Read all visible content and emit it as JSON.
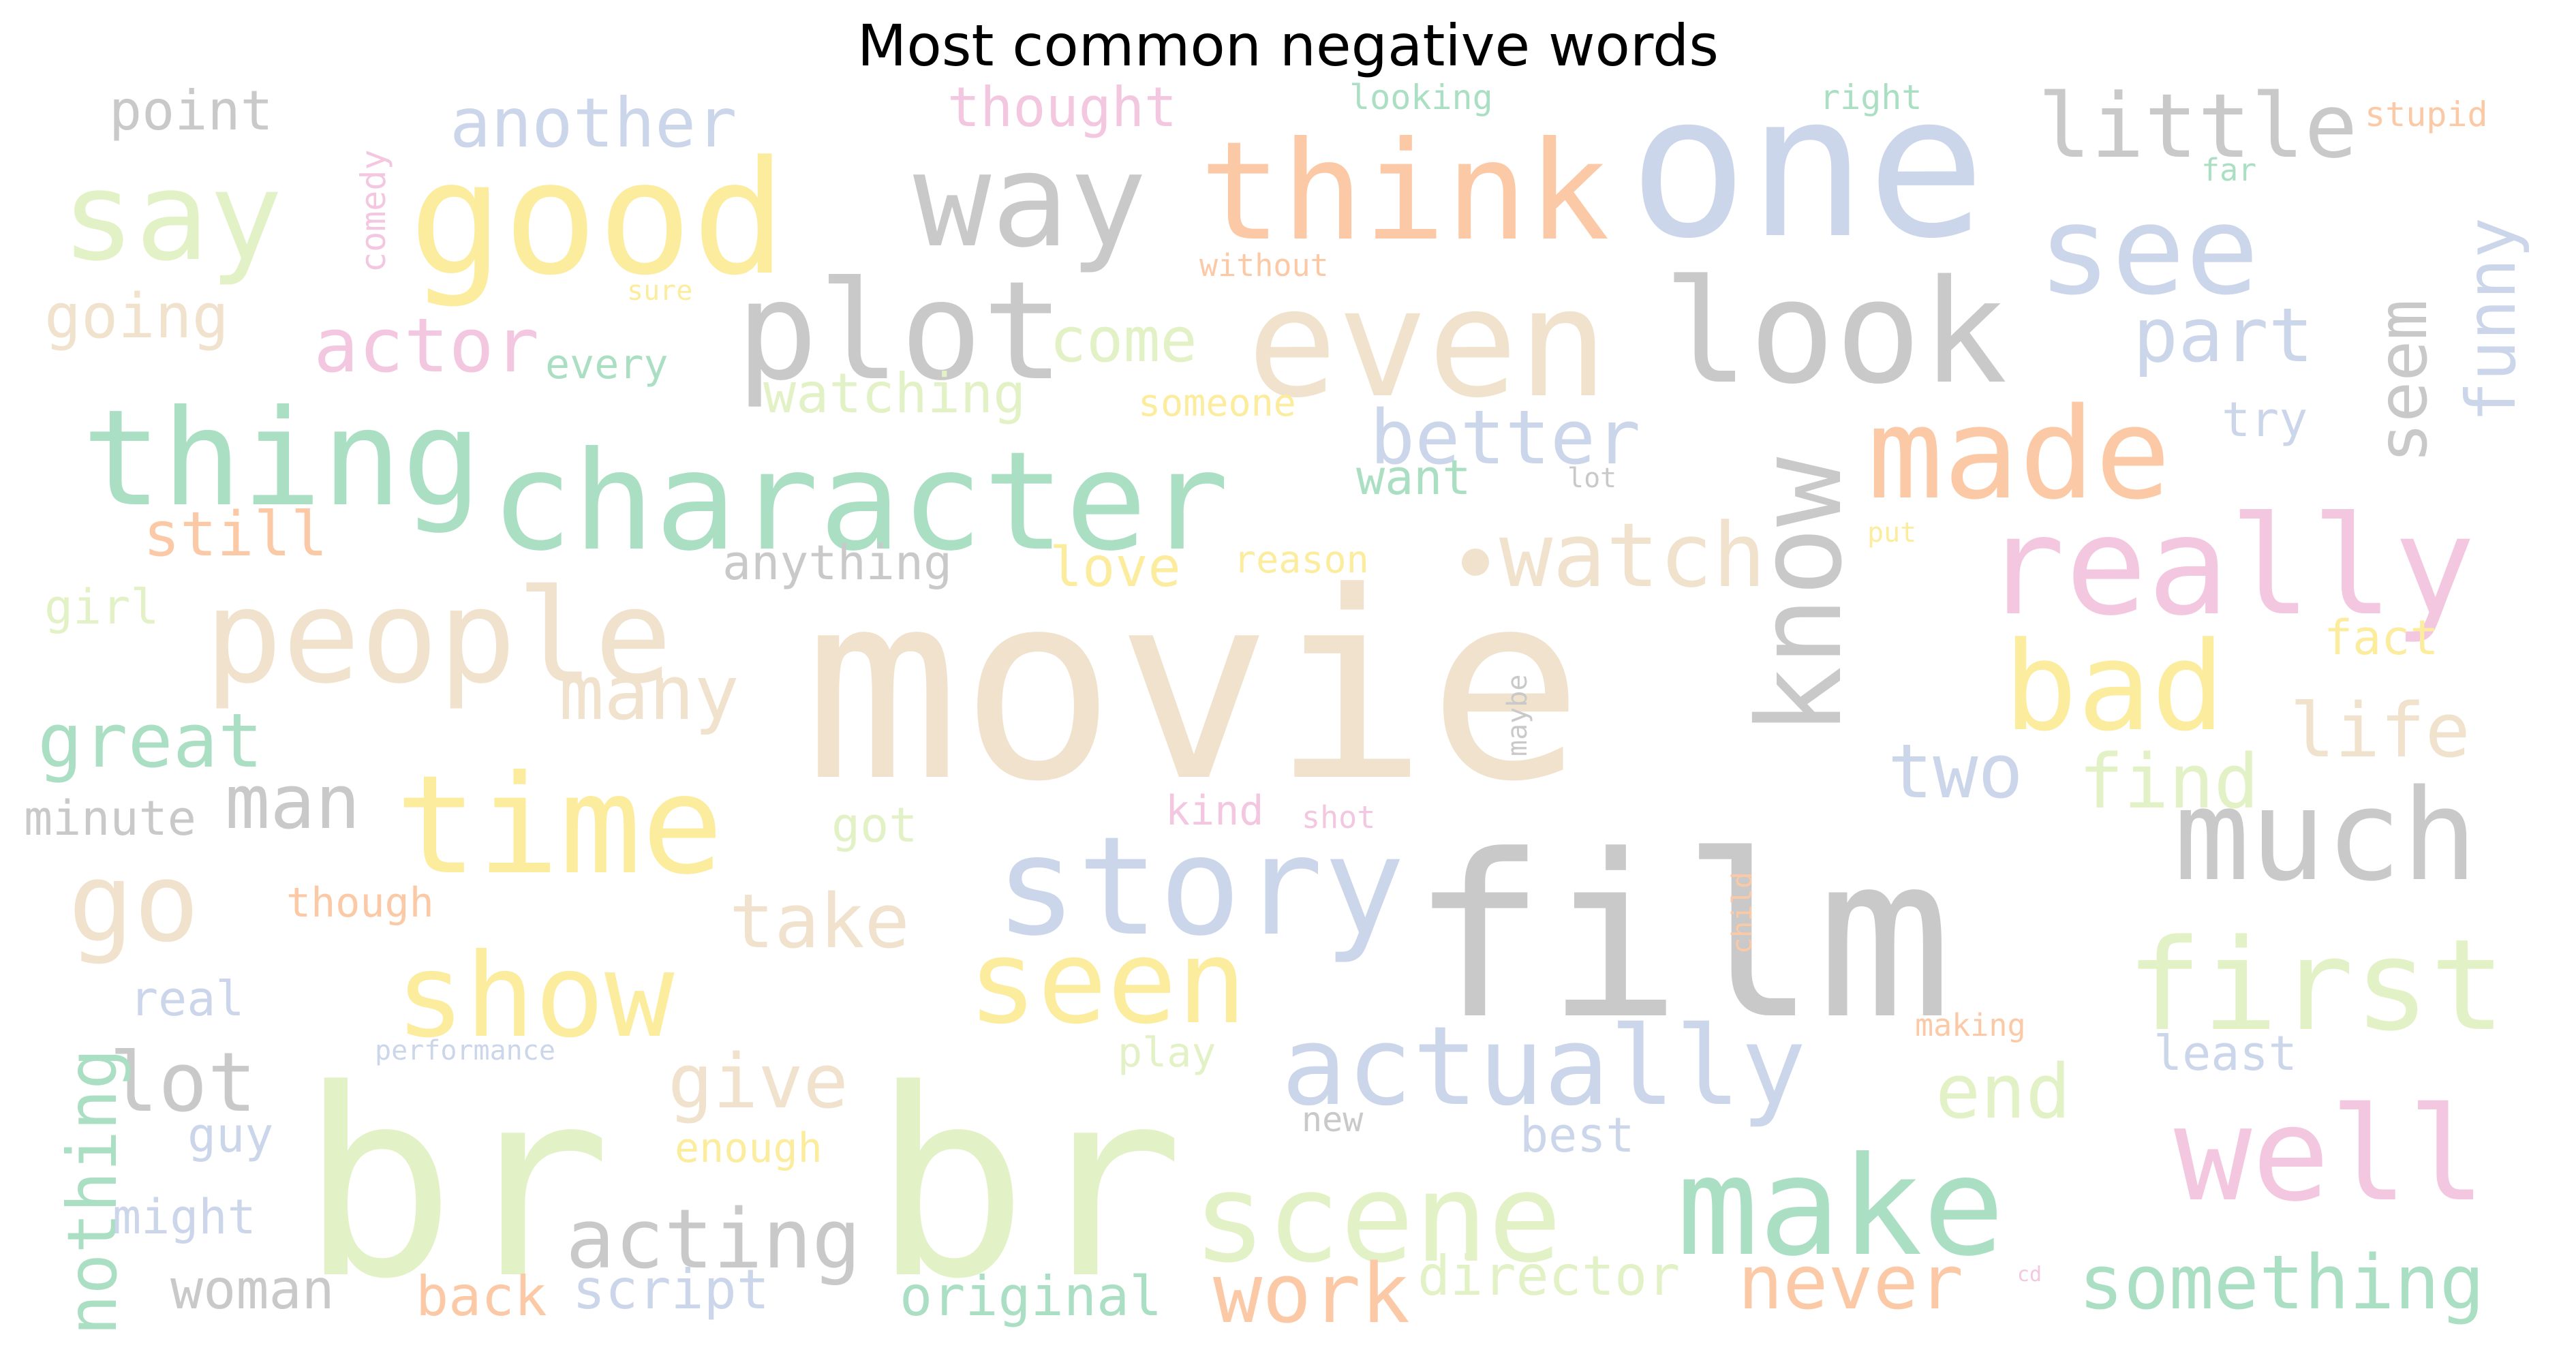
{
  "title": "Most common negative words",
  "palette": {
    "beige": "#f0e2cc",
    "grey": "#c9c9c9",
    "green": "#abdfc3",
    "lime": "#e3f2c6",
    "blue": "#ccd6ea",
    "yellow": "#fcec9e",
    "orange": "#fcc9a6",
    "pink": "#f4c7e1"
  },
  "words": [
    {
      "text": "movie",
      "color": "beige"
    },
    {
      "text": "film",
      "color": "grey"
    },
    {
      "text": "br",
      "color": "lime"
    },
    {
      "text": "br",
      "color": "lime"
    },
    {
      "text": "one",
      "color": "blue"
    },
    {
      "text": "character",
      "color": "green"
    },
    {
      "text": "even",
      "color": "beige"
    },
    {
      "text": "good",
      "color": "yellow"
    },
    {
      "text": "think",
      "color": "orange"
    },
    {
      "text": "plot",
      "color": "grey"
    },
    {
      "text": "time",
      "color": "yellow"
    },
    {
      "text": "story",
      "color": "blue"
    },
    {
      "text": "really",
      "color": "pink"
    },
    {
      "text": "people",
      "color": "beige"
    },
    {
      "text": "thing",
      "color": "green"
    },
    {
      "text": "way",
      "color": "grey"
    },
    {
      "text": "look",
      "color": "grey"
    },
    {
      "text": "make",
      "color": "green"
    },
    {
      "text": "scene",
      "color": "lime"
    },
    {
      "text": "seen",
      "color": "yellow"
    },
    {
      "text": "show",
      "color": "yellow"
    },
    {
      "text": "much",
      "color": "grey"
    },
    {
      "text": "first",
      "color": "lime"
    },
    {
      "text": "know",
      "color": "grey"
    },
    {
      "text": "made",
      "color": "orange"
    },
    {
      "text": "say",
      "color": "lime"
    },
    {
      "text": "see",
      "color": "blue"
    },
    {
      "text": "bad",
      "color": "yellow"
    },
    {
      "text": "well",
      "color": "pink"
    },
    {
      "text": "go",
      "color": "beige"
    },
    {
      "text": "actually",
      "color": "blue"
    },
    {
      "text": "little",
      "color": "grey"
    },
    {
      "text": "watch",
      "color": "beige"
    },
    {
      "text": "acting",
      "color": "grey"
    },
    {
      "text": "something",
      "color": "green"
    },
    {
      "text": "another",
      "color": "blue"
    },
    {
      "text": "funny",
      "color": "blue"
    },
    {
      "text": "great",
      "color": "green"
    },
    {
      "text": "better",
      "color": "blue"
    },
    {
      "text": "part",
      "color": "blue"
    },
    {
      "text": "seem",
      "color": "grey"
    },
    {
      "text": "many",
      "color": "beige"
    },
    {
      "text": "life",
      "color": "beige"
    },
    {
      "text": "take",
      "color": "beige"
    },
    {
      "text": "give",
      "color": "beige"
    },
    {
      "text": "find",
      "color": "lime"
    },
    {
      "text": "two",
      "color": "blue"
    },
    {
      "text": "end",
      "color": "lime"
    },
    {
      "text": "never",
      "color": "orange"
    },
    {
      "text": "work",
      "color": "orange"
    },
    {
      "text": "lot",
      "color": "grey"
    },
    {
      "text": "man",
      "color": "grey"
    },
    {
      "text": "actor",
      "color": "pink"
    },
    {
      "text": "nothing",
      "color": "green"
    },
    {
      "text": "come",
      "color": "lime"
    },
    {
      "text": "going",
      "color": "beige"
    },
    {
      "text": "point",
      "color": "grey"
    },
    {
      "text": "thought",
      "color": "pink"
    },
    {
      "text": "watching",
      "color": "lime"
    },
    {
      "text": "director",
      "color": "lime"
    },
    {
      "text": "script",
      "color": "blue"
    },
    {
      "text": "woman",
      "color": "grey"
    },
    {
      "text": "back",
      "color": "orange"
    },
    {
      "text": "original",
      "color": "green"
    },
    {
      "text": "still",
      "color": "orange"
    },
    {
      "text": "want",
      "color": "green"
    },
    {
      "text": "love",
      "color": "yellow"
    },
    {
      "text": "anything",
      "color": "grey"
    },
    {
      "text": "girl",
      "color": "lime"
    },
    {
      "text": "minute",
      "color": "grey"
    },
    {
      "text": "real",
      "color": "blue"
    },
    {
      "text": "guy",
      "color": "blue"
    },
    {
      "text": "might",
      "color": "blue"
    },
    {
      "text": "got",
      "color": "lime"
    },
    {
      "text": "though",
      "color": "orange"
    },
    {
      "text": "enough",
      "color": "yellow"
    },
    {
      "text": "play",
      "color": "lime"
    },
    {
      "text": "best",
      "color": "blue"
    },
    {
      "text": "new",
      "color": "grey"
    },
    {
      "text": "least",
      "color": "blue"
    },
    {
      "text": "making",
      "color": "orange"
    },
    {
      "text": "try",
      "color": "blue"
    },
    {
      "text": "fact",
      "color": "yellow"
    },
    {
      "text": "kind",
      "color": "pink"
    },
    {
      "text": "shot",
      "color": "pink"
    },
    {
      "text": "every",
      "color": "green"
    },
    {
      "text": "someone",
      "color": "yellow"
    },
    {
      "text": "reason",
      "color": "yellow"
    },
    {
      "text": "comedy",
      "color": "pink"
    },
    {
      "text": "looking",
      "color": "green"
    },
    {
      "text": "right",
      "color": "green"
    },
    {
      "text": "stupid",
      "color": "orange"
    },
    {
      "text": "far",
      "color": "green"
    },
    {
      "text": "without",
      "color": "orange"
    },
    {
      "text": "sure",
      "color": "yellow"
    },
    {
      "text": "lot",
      "color": "grey"
    },
    {
      "text": "put",
      "color": "yellow"
    },
    {
      "text": "maybe",
      "color": "grey"
    },
    {
      "text": "child",
      "color": "orange"
    },
    {
      "text": "performance",
      "color": "blue"
    },
    {
      "text": "cd",
      "color": "pink"
    }
  ]
}
